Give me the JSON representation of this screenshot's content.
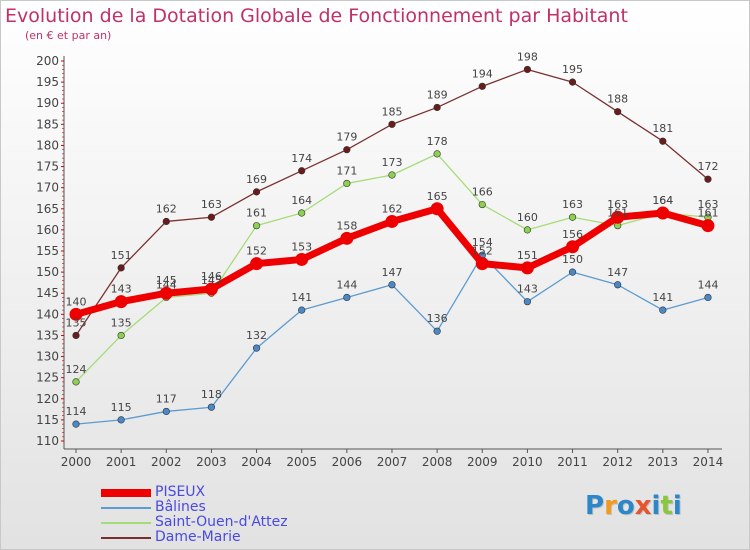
{
  "title": "Evolution de la Dotation Globale de Fonctionnement par Habitant",
  "subtitle": "(en € et par an)",
  "logo": {
    "text": "Proxiti",
    "letter_colors": [
      "#2c86c8",
      "#f29a1f",
      "#2c86c8",
      "#e8542e",
      "#2c86c8",
      "#8cc63f",
      "#2c86c8"
    ]
  },
  "colors": {
    "axis": "#555555",
    "grid_tick": "#d00000",
    "label_text": "#444444"
  },
  "chart_data": {
    "type": "line",
    "title": "Evolution de la Dotation Globale de Fonctionnement par Habitant",
    "subtitle": "(en € et par an)",
    "xlabel": "",
    "ylabel": "",
    "x": [
      2000,
      2001,
      2002,
      2003,
      2004,
      2005,
      2006,
      2007,
      2008,
      2009,
      2010,
      2011,
      2012,
      2013,
      2014
    ],
    "ylim": [
      110,
      200
    ],
    "ytick_step": 5,
    "legend_placement": "bottom-left",
    "series": [
      {
        "name": "PISEUX",
        "color": "#ee0000",
        "marker_fill": "#ee0000",
        "values": [
          140,
          143,
          145,
          146,
          152,
          153,
          158,
          162,
          165,
          152,
          151,
          156,
          163,
          164,
          161
        ],
        "labels": [
          "140",
          "143",
          "145",
          "146",
          "152",
          "153",
          "158",
          "162",
          "165",
          "152",
          "151",
          "156",
          "163",
          "164",
          "161"
        ]
      },
      {
        "name": "Bâlines",
        "color": "#5b9bd0",
        "marker_fill": "#4a88c8",
        "values": [
          114,
          115,
          117,
          118,
          132,
          141,
          144,
          147,
          136,
          154,
          143,
          150,
          147,
          141,
          144
        ],
        "labels": [
          "114",
          "115",
          "117",
          "118",
          "132",
          "141",
          "144",
          "147",
          "136",
          "154",
          "143",
          "150",
          "147",
          "141",
          "144"
        ]
      },
      {
        "name": "Saint-Ouen-d'Attez",
        "color": "#a6dc78",
        "marker_fill": "#8cd050",
        "values": [
          124,
          135,
          144,
          145,
          161,
          164,
          171,
          173,
          178,
          166,
          160,
          163,
          161,
          164,
          163
        ],
        "labels": [
          "124",
          "135",
          "144",
          "145",
          "161",
          "164",
          "171",
          "173",
          "178",
          "166",
          "160",
          "163",
          "161",
          "164",
          "163"
        ]
      },
      {
        "name": "Dame-Marie",
        "color": "#7b3030",
        "marker_fill": "#6a1c1c",
        "values": [
          135,
          151,
          162,
          163,
          169,
          174,
          179,
          185,
          189,
          194,
          198,
          195,
          188,
          181,
          172
        ],
        "labels": [
          "135",
          "151",
          "162",
          "163",
          "169",
          "174",
          "179",
          "185",
          "189",
          "194",
          "198",
          "195",
          "188",
          "181",
          "172"
        ]
      }
    ]
  }
}
